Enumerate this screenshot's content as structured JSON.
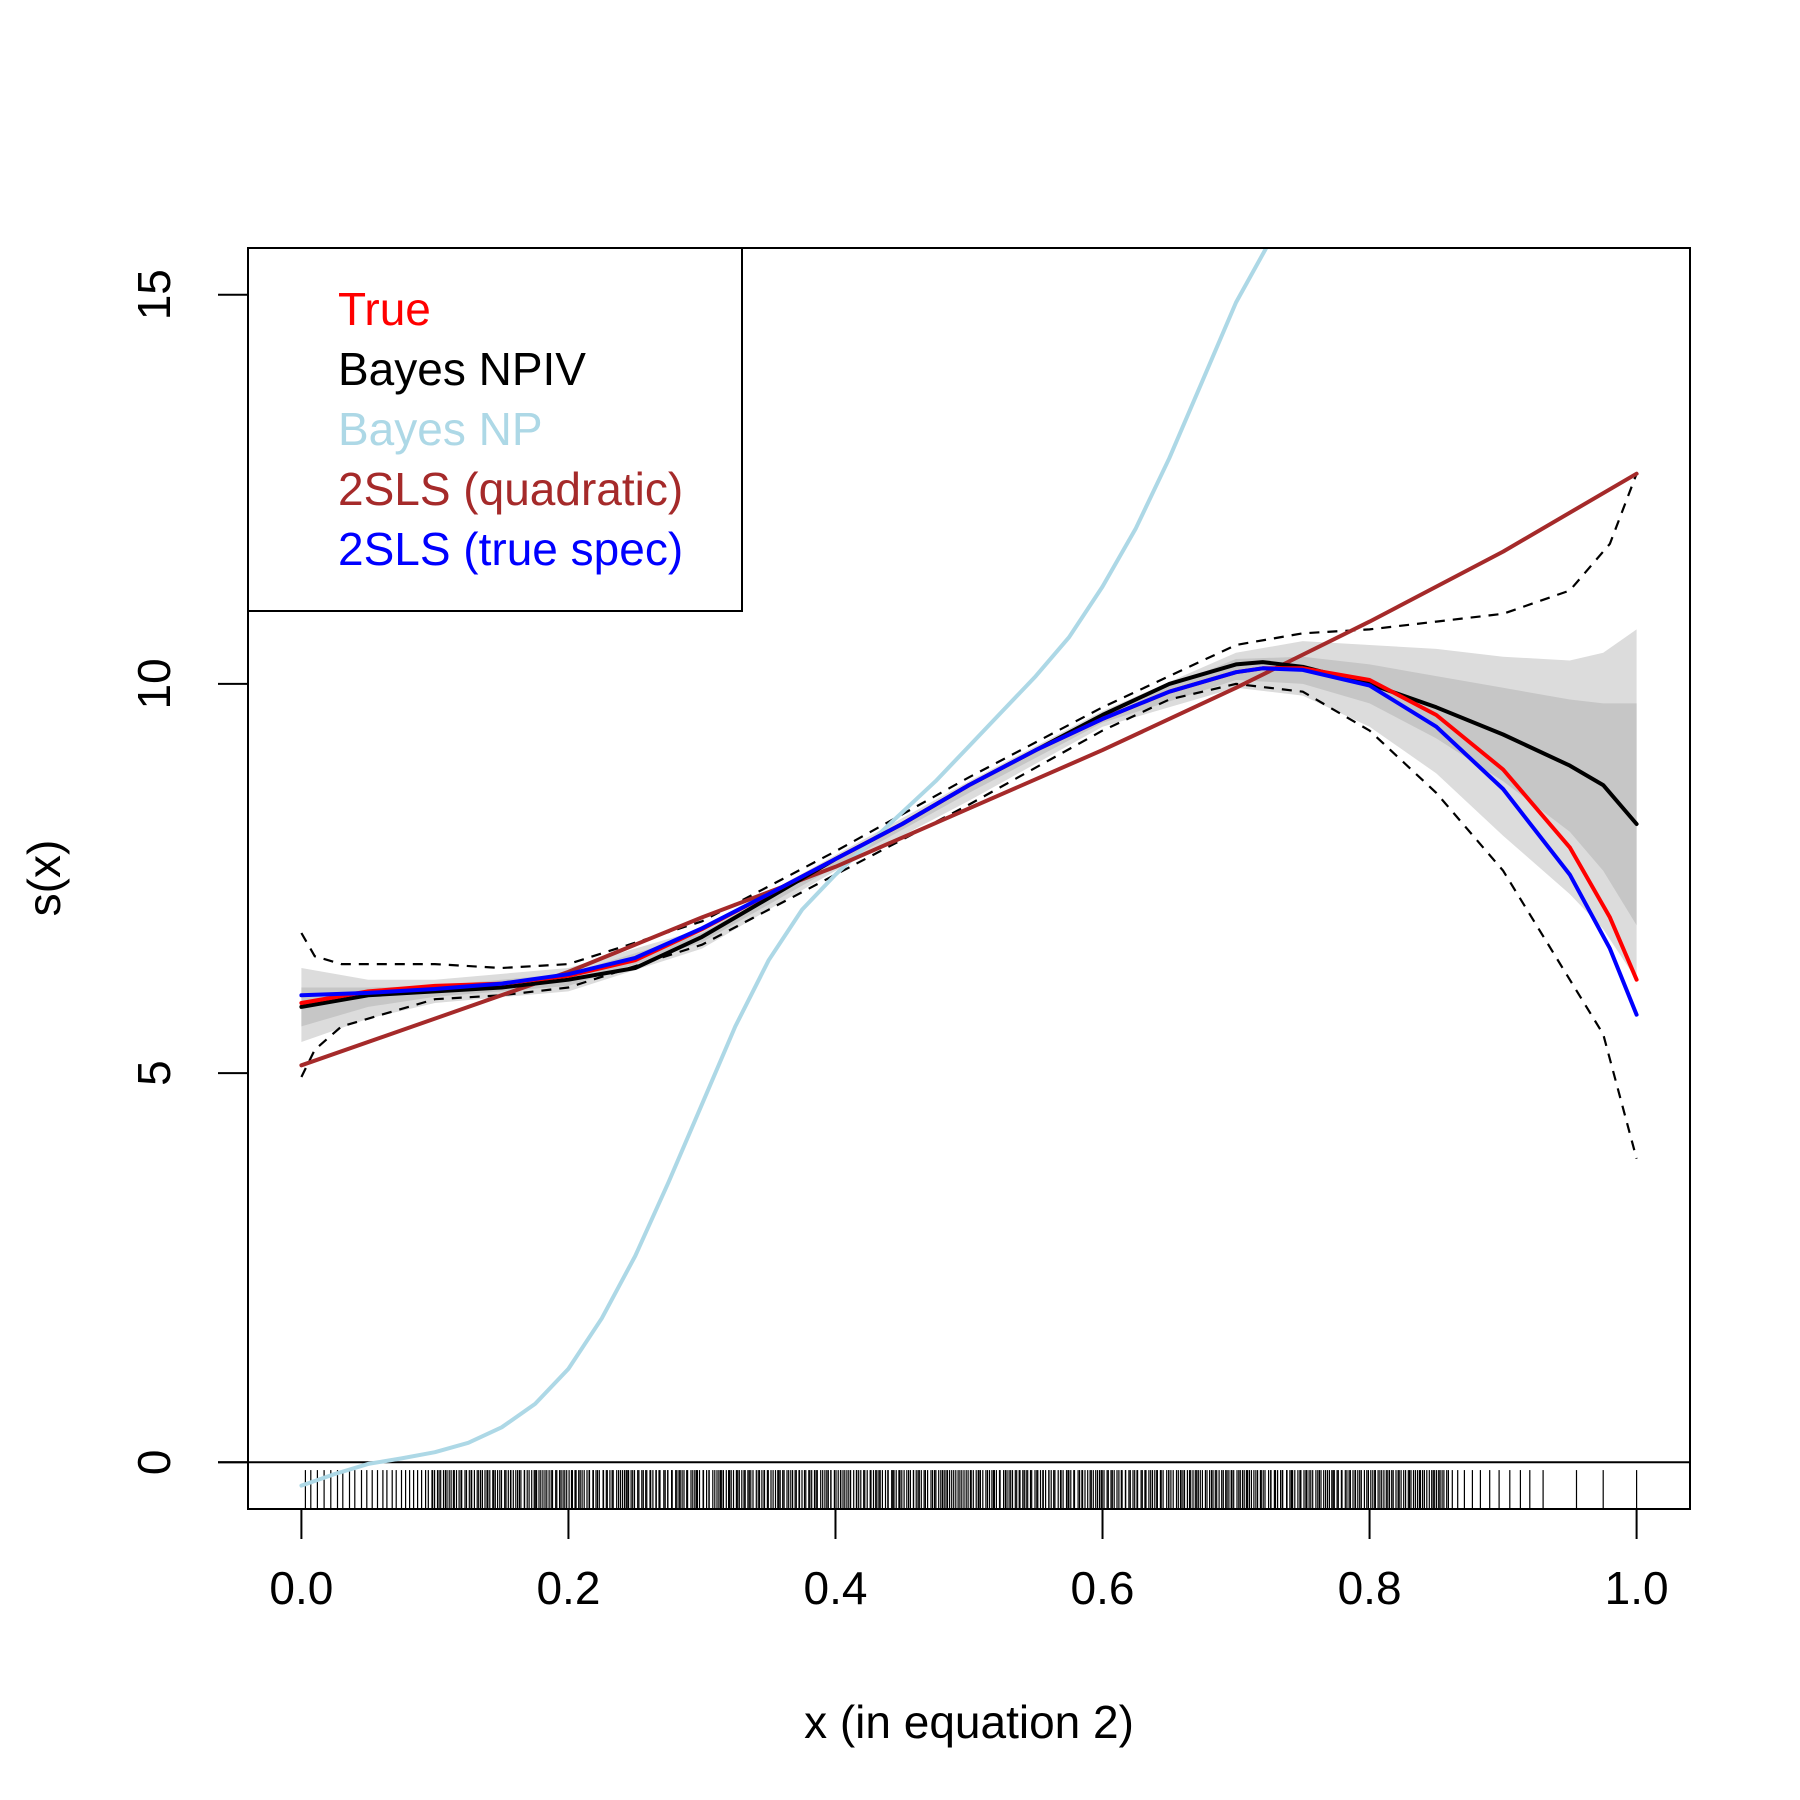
{
  "chart_data": {
    "type": "line",
    "title": "",
    "xlabel": "x  (in equation 2)",
    "ylabel": "s(x)",
    "xlim": [
      -0.04,
      1.04
    ],
    "ylim": [
      -0.6,
      15.6
    ],
    "xticks": [
      0.0,
      0.2,
      0.4,
      0.6,
      0.8,
      1.0
    ],
    "xtick_labels": [
      "0.0",
      "0.2",
      "0.4",
      "0.6",
      "0.8",
      "1.0"
    ],
    "yticks": [
      0,
      5,
      10,
      15
    ],
    "ytick_labels": [
      "0",
      "5",
      "10",
      "15"
    ],
    "zero_line": 0,
    "grid": false,
    "legend_position": "top-left",
    "legend": [
      {
        "label": "True",
        "color": "#ff0000"
      },
      {
        "label": "Bayes NPIV",
        "color": "#000000"
      },
      {
        "label": "Bayes NP",
        "color": "#add8e6"
      },
      {
        "label": "2SLS (quadratic)",
        "color": "#a52a2a"
      },
      {
        "label": "2SLS (true spec)",
        "color": "#0000ff"
      }
    ],
    "series": [
      {
        "name": "True",
        "color": "#ff0000",
        "width": 4,
        "x": [
          0.0,
          0.05,
          0.1,
          0.15,
          0.2,
          0.25,
          0.3,
          0.35,
          0.4,
          0.45,
          0.5,
          0.55,
          0.6,
          0.65,
          0.7,
          0.72,
          0.75,
          0.8,
          0.85,
          0.9,
          0.95,
          0.98,
          1.0
        ],
        "y": [
          5.9,
          6.05,
          6.12,
          6.15,
          6.25,
          6.45,
          6.85,
          7.3,
          7.75,
          8.2,
          8.7,
          9.15,
          9.55,
          9.9,
          10.15,
          10.2,
          10.2,
          10.05,
          9.6,
          8.9,
          7.9,
          7.0,
          6.2
        ]
      },
      {
        "name": "Bayes NPIV",
        "color": "#000000",
        "width": 4,
        "x": [
          0.0,
          0.05,
          0.1,
          0.15,
          0.2,
          0.25,
          0.3,
          0.35,
          0.4,
          0.45,
          0.5,
          0.55,
          0.6,
          0.65,
          0.7,
          0.72,
          0.75,
          0.8,
          0.85,
          0.9,
          0.95,
          0.975,
          1.0
        ],
        "y": [
          5.85,
          6.0,
          6.05,
          6.1,
          6.2,
          6.35,
          6.75,
          7.25,
          7.75,
          8.2,
          8.7,
          9.15,
          9.6,
          10.0,
          10.25,
          10.28,
          10.22,
          10.0,
          9.7,
          9.35,
          8.95,
          8.7,
          8.2
        ]
      },
      {
        "name": "Bayes NP",
        "color": "#add8e6",
        "width": 4,
        "x": [
          0.0,
          0.025,
          0.05,
          0.075,
          0.1,
          0.125,
          0.15,
          0.175,
          0.2,
          0.225,
          0.25,
          0.275,
          0.3,
          0.325,
          0.35,
          0.375,
          0.4,
          0.425,
          0.45,
          0.475,
          0.5,
          0.525,
          0.55,
          0.575,
          0.6,
          0.625,
          0.65,
          0.675,
          0.7,
          0.7226
        ],
        "y": [
          -0.3,
          -0.15,
          -0.02,
          0.05,
          0.13,
          0.25,
          0.45,
          0.75,
          1.2,
          1.85,
          2.65,
          3.6,
          4.6,
          5.6,
          6.45,
          7.1,
          7.55,
          7.95,
          8.35,
          8.75,
          9.2,
          9.65,
          10.1,
          10.6,
          11.25,
          12.0,
          12.9,
          13.9,
          14.9,
          15.6
        ]
      },
      {
        "name": "2SLS (quadratic)",
        "color": "#a52a2a",
        "width": 4,
        "x": [
          0.0,
          0.1,
          0.2,
          0.3,
          0.4,
          0.5,
          0.6,
          0.7,
          0.8,
          0.9,
          1.0
        ],
        "y": [
          5.1,
          5.7,
          6.3,
          7.0,
          7.65,
          8.4,
          9.15,
          9.95,
          10.8,
          11.7,
          12.7
        ]
      },
      {
        "name": "2SLS (true spec)",
        "color": "#0000ff",
        "width": 4,
        "x": [
          0.0,
          0.05,
          0.1,
          0.15,
          0.2,
          0.25,
          0.3,
          0.35,
          0.4,
          0.45,
          0.5,
          0.55,
          0.6,
          0.65,
          0.7,
          0.72,
          0.75,
          0.8,
          0.85,
          0.9,
          0.95,
          0.98,
          1.0
        ],
        "y": [
          6.0,
          6.03,
          6.08,
          6.15,
          6.27,
          6.48,
          6.86,
          7.3,
          7.75,
          8.2,
          8.7,
          9.15,
          9.55,
          9.9,
          10.15,
          10.2,
          10.18,
          9.98,
          9.45,
          8.65,
          7.55,
          6.6,
          5.75
        ]
      }
    ],
    "dashed_bounds": [
      {
        "name": "upper",
        "color": "#000000",
        "x": [
          0.0,
          0.01,
          0.03,
          0.1,
          0.15,
          0.2,
          0.3,
          0.4,
          0.5,
          0.6,
          0.65,
          0.7,
          0.75,
          0.8,
          0.85,
          0.9,
          0.95,
          0.98,
          1.0
        ],
        "y": [
          6.8,
          6.5,
          6.4,
          6.4,
          6.35,
          6.4,
          6.95,
          7.85,
          8.8,
          9.7,
          10.1,
          10.5,
          10.65,
          10.7,
          10.8,
          10.9,
          11.2,
          11.8,
          12.7
        ]
      },
      {
        "name": "lower",
        "color": "#000000",
        "x": [
          0.0,
          0.01,
          0.03,
          0.1,
          0.15,
          0.2,
          0.3,
          0.4,
          0.5,
          0.6,
          0.65,
          0.7,
          0.75,
          0.8,
          0.85,
          0.9,
          0.95,
          0.975,
          1.0
        ],
        "y": [
          4.95,
          5.3,
          5.6,
          5.95,
          6.0,
          6.1,
          6.65,
          7.55,
          8.45,
          9.4,
          9.8,
          10.0,
          9.9,
          9.4,
          8.6,
          7.6,
          6.2,
          5.5,
          3.9
        ]
      }
    ],
    "bands": [
      {
        "name": "outer band",
        "color": "#dcdcdc",
        "x": [
          0.0,
          0.05,
          0.1,
          0.2,
          0.3,
          0.4,
          0.5,
          0.6,
          0.7,
          0.75,
          0.8,
          0.85,
          0.9,
          0.95,
          0.975,
          1.0
        ],
        "upper": [
          6.35,
          6.2,
          6.2,
          6.35,
          6.85,
          7.8,
          8.75,
          9.65,
          10.4,
          10.55,
          10.5,
          10.45,
          10.35,
          10.3,
          10.4,
          10.7
        ],
        "lower": [
          5.4,
          5.7,
          5.9,
          6.05,
          6.6,
          7.6,
          8.5,
          9.45,
          9.95,
          9.85,
          9.45,
          8.85,
          8.05,
          7.3,
          6.85,
          6.2
        ]
      },
      {
        "name": "inner band",
        "color": "#c6c6c6",
        "x": [
          0.0,
          0.05,
          0.1,
          0.2,
          0.3,
          0.4,
          0.5,
          0.6,
          0.7,
          0.75,
          0.8,
          0.85,
          0.9,
          0.95,
          0.975,
          1.0
        ],
        "upper": [
          6.1,
          6.1,
          6.12,
          6.28,
          6.8,
          7.75,
          8.72,
          9.62,
          10.32,
          10.35,
          10.25,
          10.1,
          9.95,
          9.8,
          9.75,
          9.75
        ],
        "lower": [
          5.6,
          5.85,
          5.98,
          6.12,
          6.68,
          7.65,
          8.6,
          9.5,
          10.05,
          10.0,
          9.75,
          9.3,
          8.75,
          8.1,
          7.6,
          6.9
        ]
      }
    ],
    "rug": {
      "color": "#000000",
      "y_top": -0.1,
      "y_bottom": -0.6,
      "sparse_x": [
        0.003,
        0.007,
        0.012,
        0.017,
        0.022,
        0.027,
        0.031,
        0.036,
        0.04,
        0.045,
        0.049,
        0.053,
        0.057,
        0.061,
        0.064,
        0.068,
        0.071,
        0.075,
        0.078,
        0.081,
        0.084,
        0.087,
        0.09,
        0.093,
        0.862,
        0.866,
        0.871,
        0.877,
        0.883,
        0.89,
        0.897,
        0.905,
        0.913,
        0.92,
        0.93,
        0.955,
        0.975,
        1.0
      ],
      "dense_range": [
        0.095,
        0.86
      ],
      "dense_count": 520
    }
  }
}
